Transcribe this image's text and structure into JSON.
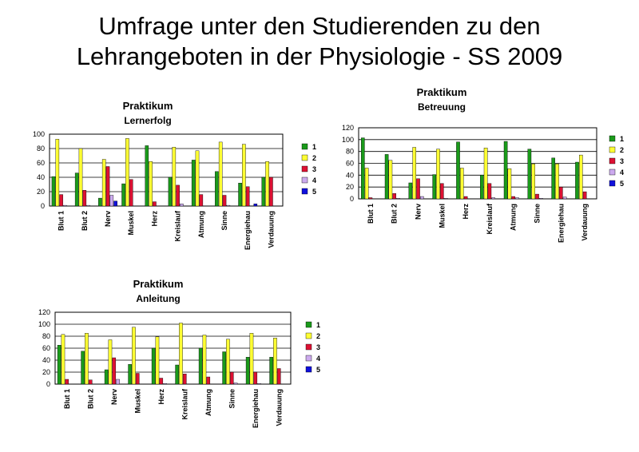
{
  "page": {
    "title_line1": "Umfrage unter den Studierenden zu den",
    "title_line2": "Lehrangeboten in der Physiologie - SS 2009"
  },
  "colors": {
    "series": [
      "#1a9a1a",
      "#ffff33",
      "#dd1133",
      "#ccaaee",
      "#1010dd"
    ]
  },
  "chart_data": [
    {
      "type": "bar",
      "title": "Praktikum",
      "subtitle": "Lernerfolg",
      "categories": [
        "Blut 1",
        "Blut 2",
        "Nerv",
        "Muskel",
        "Herz",
        "Kreislauf",
        "Atmung",
        "Sinne",
        "Energiehau",
        "Verdauung"
      ],
      "ylim": [
        0,
        100
      ],
      "yticks": [
        0,
        20,
        40,
        60,
        80,
        100
      ],
      "legend_position": "right",
      "series": [
        {
          "name": "1",
          "values": [
            41,
            46,
            11,
            31,
            84,
            40,
            64,
            48,
            32,
            40
          ]
        },
        {
          "name": "2",
          "values": [
            93,
            80,
            65,
            94,
            62,
            82,
            77,
            89,
            86,
            62
          ]
        },
        {
          "name": "3",
          "values": [
            16,
            22,
            55,
            37,
            6,
            29,
            16,
            15,
            27,
            40
          ]
        },
        {
          "name": "4",
          "values": [
            1,
            1,
            15,
            0,
            0,
            3,
            0,
            1,
            0,
            0
          ]
        },
        {
          "name": "5",
          "values": [
            0,
            0,
            7,
            0,
            0,
            0,
            0,
            0,
            3,
            0
          ]
        }
      ]
    },
    {
      "type": "bar",
      "title": "Praktikum",
      "subtitle": "Betreuung",
      "categories": [
        "Blut 1",
        "Blut 2",
        "Nerv",
        "Muskel",
        "Herz",
        "Kreislauf",
        "Atmung",
        "Sinne",
        "Energiehau",
        "Verdauung"
      ],
      "ylim": [
        0,
        120
      ],
      "yticks": [
        0,
        20,
        40,
        60,
        80,
        100,
        120
      ],
      "legend_position": "right",
      "series": [
        {
          "name": "1",
          "values": [
            103,
            75,
            27,
            41,
            96,
            40,
            97,
            84,
            69,
            62
          ]
        },
        {
          "name": "2",
          "values": [
            52,
            65,
            87,
            84,
            52,
            86,
            51,
            59,
            59,
            74
          ]
        },
        {
          "name": "3",
          "values": [
            2,
            9,
            34,
            26,
            4,
            26,
            4,
            8,
            20,
            12
          ]
        },
        {
          "name": "4",
          "values": [
            0,
            1,
            4,
            1,
            0,
            2,
            2,
            1,
            3,
            0
          ]
        },
        {
          "name": "5",
          "values": [
            0,
            0,
            0,
            0,
            0,
            0,
            0,
            0,
            0,
            0
          ]
        }
      ]
    },
    {
      "type": "bar",
      "title": "Praktikum",
      "subtitle": "Anleitung",
      "categories": [
        "Blut 1",
        "Blut 2",
        "Nerv",
        "Muskel",
        "Herz",
        "Kreislauf",
        "Atmung",
        "Sinne",
        "Energiehau",
        "Verdauung"
      ],
      "ylim": [
        0,
        120
      ],
      "yticks": [
        0,
        20,
        40,
        60,
        80,
        100,
        120
      ],
      "legend_position": "right",
      "series": [
        {
          "name": "1",
          "values": [
            65,
            55,
            24,
            33,
            60,
            32,
            60,
            54,
            45,
            45
          ]
        },
        {
          "name": "2",
          "values": [
            83,
            85,
            74,
            95,
            79,
            102,
            82,
            75,
            85,
            77
          ]
        },
        {
          "name": "3",
          "values": [
            8,
            7,
            44,
            18,
            10,
            17,
            12,
            20,
            20,
            26
          ]
        },
        {
          "name": "4",
          "values": [
            0,
            0,
            8,
            0,
            1,
            0,
            0,
            2,
            1,
            0
          ]
        },
        {
          "name": "5",
          "values": [
            0,
            0,
            0,
            0,
            0,
            0,
            0,
            0,
            0,
            0
          ]
        }
      ]
    }
  ]
}
